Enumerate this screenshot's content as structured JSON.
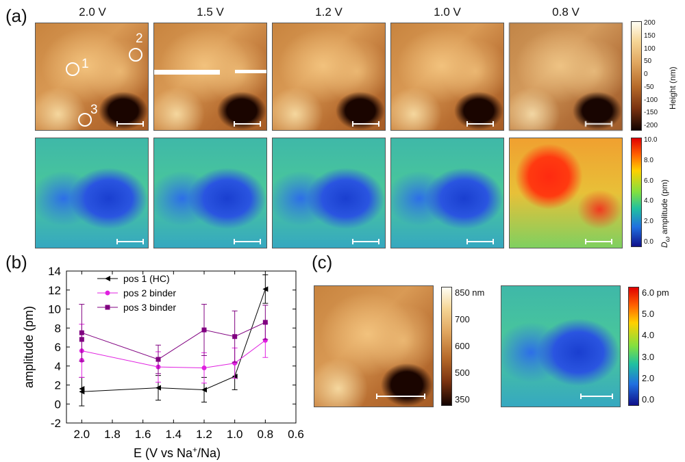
{
  "labels": {
    "a": "(a)",
    "b": "(b)",
    "c": "(c)"
  },
  "voltages": [
    "2.0 V",
    "1.5 V",
    "1.2 V",
    "1.0 V",
    "0.8 V"
  ],
  "points": [
    {
      "label": "1"
    },
    {
      "label": "2"
    },
    {
      "label": "3"
    }
  ],
  "height_colorbar": {
    "title": "Height (nm)",
    "ticks": [
      "200",
      "150",
      "100",
      "50",
      "0",
      "-50",
      "-100",
      "-150",
      "-200"
    ]
  },
  "amp_colorbar": {
    "title": "amplitude (pm)",
    "symbol": "D",
    "symbol_sub": "ω",
    "ticks": [
      "10.0",
      "8.0",
      "6.0",
      "4.0",
      "2.0",
      "0.0"
    ]
  },
  "c_height_colorbar": {
    "ticks": [
      "850 nm",
      "700",
      "600",
      "500",
      "350"
    ]
  },
  "c_amp_colorbar": {
    "ticks": [
      "6.0 pm",
      "5.0",
      "4.0",
      "3.0",
      "2.0",
      "0.0"
    ]
  },
  "chart_data": {
    "type": "line",
    "xlabel": "E (V vs Na",
    "xlabel_sup": "+",
    "xlabel_end": "/Na)",
    "ylabel": "amplitude (pm)",
    "xlim": [
      2.1,
      0.6
    ],
    "ylim": [
      -2,
      14
    ],
    "xticks": [
      "2.0",
      "1.8",
      "1.6",
      "1.4",
      "1.2",
      "1.0",
      "0.8",
      "0.6"
    ],
    "yticks": [
      "-2",
      "0",
      "2",
      "4",
      "6",
      "8",
      "10",
      "12",
      "14"
    ],
    "x": [
      2.0,
      1.5,
      1.2,
      1.0,
      0.8
    ],
    "series": [
      {
        "name": "pos 1 (HC)",
        "color": "#000000",
        "marker": "triangle-left",
        "values": [
          1.3,
          1.7,
          1.5,
          2.9,
          12.1
        ],
        "errors": [
          1.5,
          1.3,
          1.3,
          1.4,
          1.5
        ],
        "extra": [
          {
            "x": 2.0,
            "y": 1.6
          }
        ]
      },
      {
        "name": "pos 2 binder",
        "color": "#e020e0",
        "marker": "circle",
        "values": [
          5.6,
          3.9,
          3.8,
          4.3,
          6.7
        ],
        "errors": [
          2.8,
          1.6,
          1.6,
          1.6,
          1.8
        ],
        "extra": [
          {
            "x": 2.0,
            "y": 4.6
          }
        ]
      },
      {
        "name": "pos 3 binder",
        "color": "#800080",
        "marker": "square",
        "values": [
          7.5,
          4.7,
          7.8,
          7.1,
          8.6
        ],
        "errors": [
          3.0,
          1.5,
          2.7,
          2.7,
          1.8
        ],
        "extra": [
          {
            "x": 2.0,
            "y": 6.8
          }
        ]
      }
    ]
  }
}
